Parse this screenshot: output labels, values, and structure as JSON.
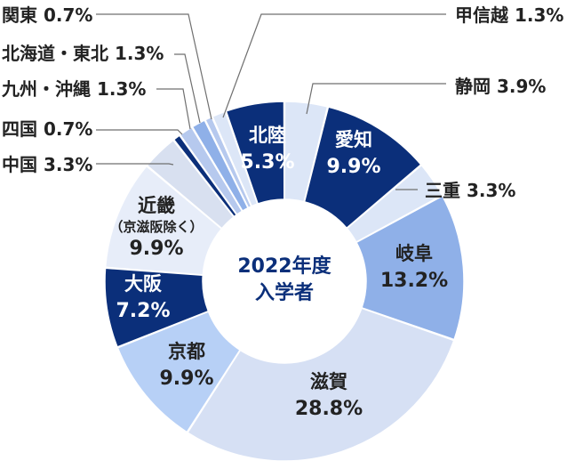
{
  "chart_data": {
    "type": "pie",
    "center_label": [
      "2022年度",
      "入学者"
    ],
    "unit": "%",
    "slices": [
      {
        "name": "静岡",
        "value": 3.9,
        "color": "#dce6f7",
        "label_pos": "outside"
      },
      {
        "name": "愛知",
        "value": 9.9,
        "color": "#0b2f7a",
        "label_pos": "inside"
      },
      {
        "name": "三重",
        "value": 3.3,
        "color": "#dce6f7",
        "label_pos": "outside"
      },
      {
        "name": "岐阜",
        "value": 13.2,
        "color": "#8fb0e8",
        "label_pos": "inside"
      },
      {
        "name": "滋賀",
        "value": 28.8,
        "color": "#d6e0f4",
        "label_pos": "inside"
      },
      {
        "name": "京都",
        "value": 9.9,
        "color": "#b7d0f6",
        "label_pos": "inside"
      },
      {
        "name": "大阪",
        "value": 7.2,
        "color": "#0b2f7a",
        "label_pos": "inside"
      },
      {
        "name": "近畿",
        "sub": "（京滋阪除く）",
        "value": 9.9,
        "color": "#e7edf9",
        "label_pos": "inside"
      },
      {
        "name": "中国",
        "value": 3.3,
        "color": "#d8e0f0",
        "label_pos": "outside"
      },
      {
        "name": "四国",
        "value": 0.7,
        "color": "#0b2f7a",
        "label_pos": "outside"
      },
      {
        "name": "九州・沖縄",
        "value": 1.3,
        "color": "#b6c9ee",
        "label_pos": "outside"
      },
      {
        "name": "北海道・東北",
        "value": 1.3,
        "color": "#8fb0e8",
        "label_pos": "outside"
      },
      {
        "name": "関東",
        "value": 0.7,
        "color": "#b6c9ee",
        "label_pos": "outside"
      },
      {
        "name": "甲信越",
        "value": 1.3,
        "color": "#dce6f7",
        "label_pos": "outside"
      },
      {
        "name": "北陸",
        "value": 5.3,
        "color": "#0b2f7a",
        "label_pos": "inside"
      }
    ]
  }
}
